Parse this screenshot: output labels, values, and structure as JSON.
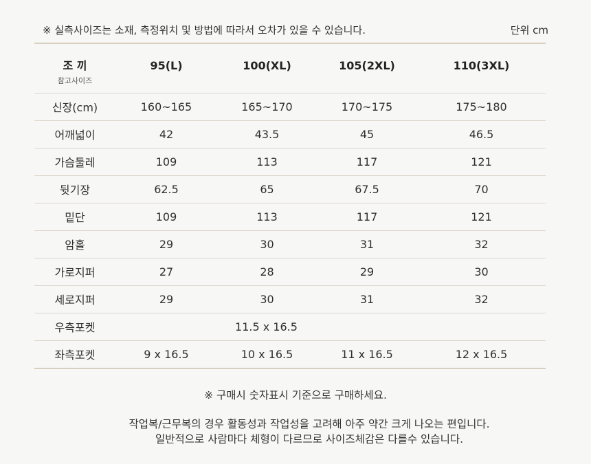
{
  "notes": {
    "top": "※ 실측사이즈는 소재, 측정위치 및 방법에 따라서 오차가 있을 수 있습니다.",
    "unit": "단위 cm",
    "purchase": "※ 구매시 숫자표시 기준으로 구매하세요.",
    "fit_line1": "작업복/근무복의 경우 활동성과 작업성을 고려해 아주 약간 크게 나오는 편입니다.",
    "fit_line2": "일반적으로 사람마다 체형이 다르므로 사이즈체감은 다를수 있습니다."
  },
  "table": {
    "header": {
      "title": "조 끼",
      "subtitle": "참고사이즈",
      "sizes": [
        "95(L)",
        "100(XL)",
        "105(2XL)",
        "110(3XL)"
      ]
    },
    "rows": [
      {
        "label": "신장(cm)",
        "values": [
          "160~165",
          "165~170",
          "170~175",
          "175~180"
        ]
      },
      {
        "label": "어깨넓이",
        "values": [
          "42",
          "43.5",
          "45",
          "46.5"
        ]
      },
      {
        "label": "가슴둘레",
        "values": [
          "109",
          "113",
          "117",
          "121"
        ]
      },
      {
        "label": "뒷기장",
        "values": [
          "62.5",
          "65",
          "67.5",
          "70"
        ]
      },
      {
        "label": "밑단",
        "values": [
          "109",
          "113",
          "117",
          "121"
        ]
      },
      {
        "label": "암홀",
        "values": [
          "29",
          "30",
          "31",
          "32"
        ]
      },
      {
        "label": "가로지퍼",
        "values": [
          "27",
          "28",
          "29",
          "30"
        ]
      },
      {
        "label": "세로지퍼",
        "values": [
          "29",
          "30",
          "31",
          "32"
        ]
      }
    ],
    "right_pocket": {
      "label": "우측포켓",
      "value": "11.5 x 16.5"
    },
    "left_pocket": {
      "label": "좌측포켓",
      "values": [
        "9 x 16.5",
        "10 x 16.5",
        "11 x 16.5",
        "12 x 16.5"
      ]
    }
  }
}
